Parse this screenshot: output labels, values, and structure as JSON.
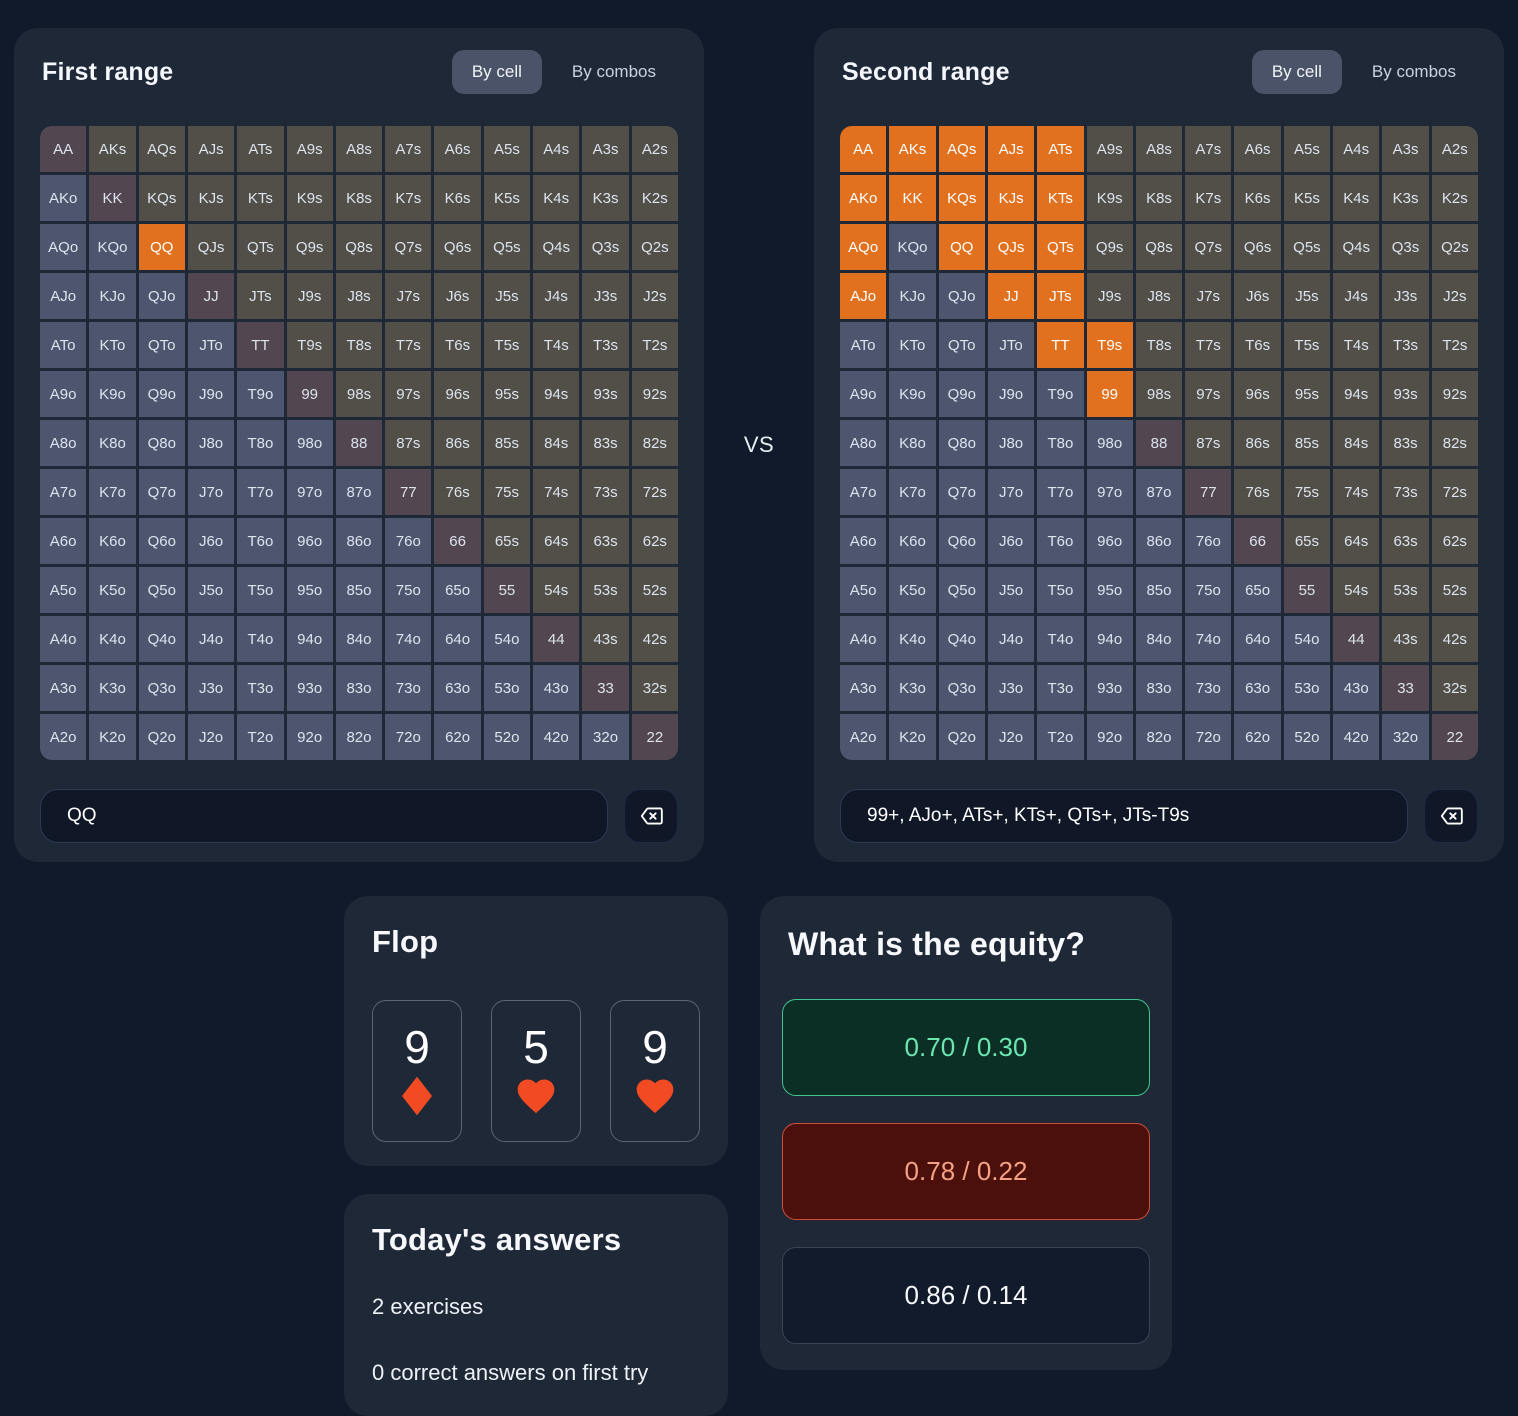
{
  "colors": {
    "accent_orange": "#e2711f",
    "suit_red": "#f24a23",
    "correct_green": "#6ce7b2",
    "incorrect_red": "#f6a183",
    "cell_offsuit": "#4e556e",
    "cell_suited": "#514f48",
    "cell_pair": "#524650"
  },
  "grid": {
    "ranks": [
      "A",
      "K",
      "Q",
      "J",
      "T",
      "9",
      "8",
      "7",
      "6",
      "5",
      "4",
      "3",
      "2"
    ]
  },
  "first_range": {
    "title": "First range",
    "by_cell_label": "By cell",
    "by_combos_label": "By combos",
    "active_view": "By cell",
    "input_value": "QQ",
    "selected": [
      "QQ"
    ]
  },
  "second_range": {
    "title": "Second range",
    "by_cell_label": "By cell",
    "by_combos_label": "By combos",
    "active_view": "By cell",
    "input_value": "99+, AJo+, ATs+, KTs+, QTs+, JTs-T9s",
    "selected": [
      "AA",
      "AKs",
      "AQs",
      "AJs",
      "ATs",
      "AKo",
      "KK",
      "KQs",
      "KJs",
      "KTs",
      "AQo",
      "QQ",
      "QJs",
      "QTs",
      "AJo",
      "JJ",
      "JTs",
      "TT",
      "T9s",
      "99"
    ]
  },
  "vs_label": "VS",
  "flop": {
    "title": "Flop",
    "cards": [
      {
        "rank": "9",
        "suit": "diamond"
      },
      {
        "rank": "5",
        "suit": "heart"
      },
      {
        "rank": "9",
        "suit": "heart"
      }
    ]
  },
  "equity": {
    "title": "What is the equity?",
    "options": [
      {
        "label": "0.70 / 0.30",
        "state": "correct"
      },
      {
        "label": "0.78 / 0.22",
        "state": "incorrect"
      },
      {
        "label": "0.86 / 0.14",
        "state": "neutral"
      }
    ]
  },
  "today": {
    "title": "Today's answers",
    "exercises_label": "2 exercises",
    "correct_label": "0 correct answers on first try"
  }
}
